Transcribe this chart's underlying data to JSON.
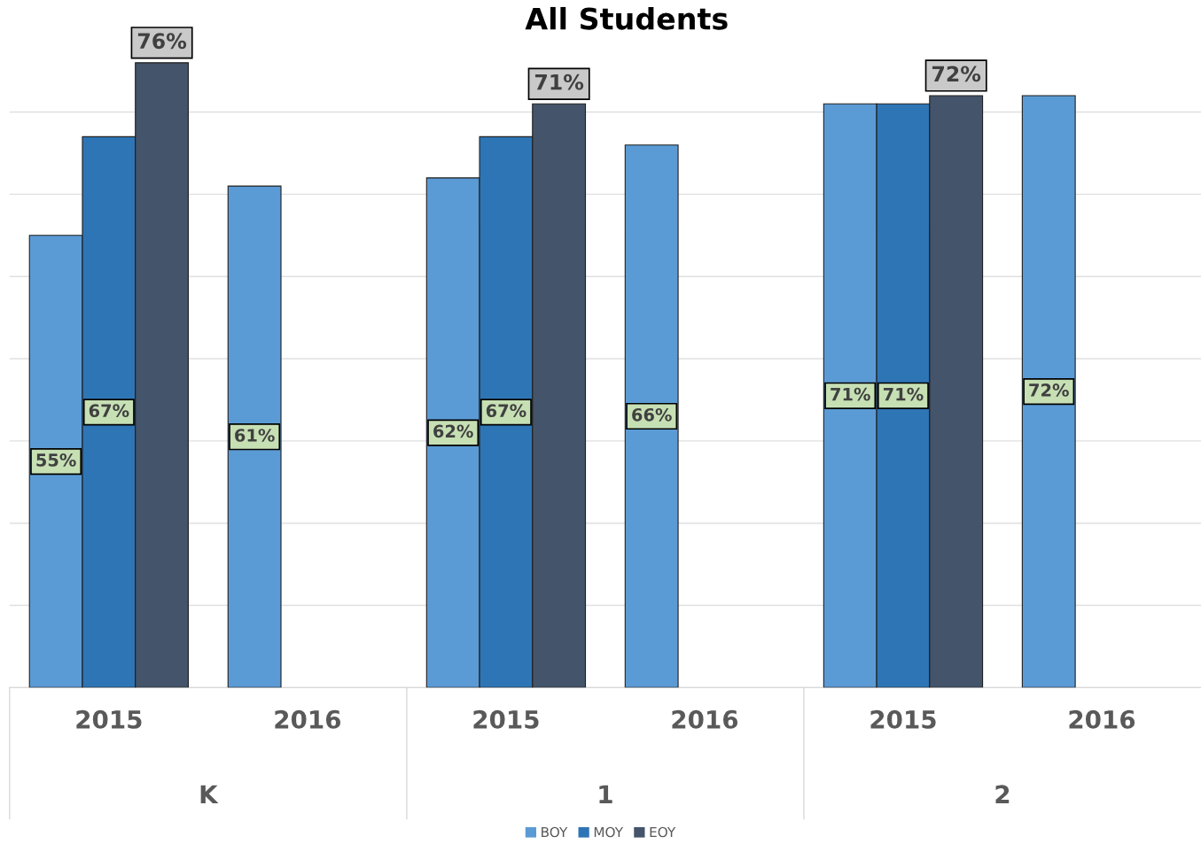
{
  "chart_data": {
    "type": "bar",
    "title": "All Students",
    "categories": [
      "2015",
      "2016",
      "2015",
      "2016",
      "2015",
      "2016"
    ],
    "annotations": [
      "K",
      "1",
      "2"
    ],
    "series": [
      {
        "name": "BOY",
        "color": "#5b9bd5",
        "values": [
          55,
          61,
          62,
          66,
          71,
          72
        ],
        "value_labels": [
          "55%",
          "61%",
          "62%",
          "66%",
          "71%",
          "72%"
        ]
      },
      {
        "name": "MOY",
        "color": "#2e75b6",
        "values": [
          67,
          null,
          67,
          null,
          71,
          null
        ],
        "value_labels": [
          "67%",
          null,
          "67%",
          null,
          "71%",
          null
        ]
      },
      {
        "name": "EOY",
        "color": "#44546a",
        "values": [
          76,
          null,
          71,
          null,
          72,
          null
        ],
        "value_labels": [
          "76%",
          null,
          "71%",
          null,
          "72%",
          null
        ]
      }
    ],
    "tick_labels": "x",
    "grid": "y",
    "legend": "bottom"
  }
}
